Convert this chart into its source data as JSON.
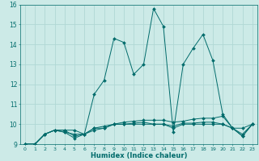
{
  "xlabel": "Humidex (Indice chaleur)",
  "ylabel": "",
  "bg_color": "#cceae7",
  "grid_color": "#b0d8d5",
  "line_color": "#006b6b",
  "xlim": [
    -0.5,
    23.5
  ],
  "ylim": [
    9,
    16
  ],
  "yticks": [
    9,
    10,
    11,
    12,
    13,
    14,
    15,
    16
  ],
  "xtick_labels": [
    "0",
    "1",
    "2",
    "3",
    "4",
    "5",
    "6",
    "7",
    "8",
    "9",
    "10",
    "11",
    "12",
    "13",
    "14",
    "15",
    "16",
    "17",
    "18",
    "19",
    "20",
    "21",
    "22",
    "23"
  ],
  "series": [
    [
      9.0,
      9.0,
      9.5,
      9.7,
      9.7,
      9.7,
      9.5,
      11.5,
      12.2,
      14.3,
      14.1,
      12.5,
      13.0,
      15.8,
      14.9,
      9.6,
      13.0,
      13.8,
      14.5,
      13.2,
      10.5,
      9.8,
      9.8,
      10.0
    ],
    [
      9.0,
      9.0,
      9.5,
      9.7,
      9.7,
      9.4,
      9.5,
      9.7,
      9.8,
      10.0,
      10.1,
      10.15,
      10.2,
      10.2,
      10.2,
      10.1,
      10.15,
      10.25,
      10.3,
      10.3,
      10.4,
      9.8,
      9.4,
      10.0
    ],
    [
      9.0,
      9.0,
      9.5,
      9.7,
      9.6,
      9.3,
      9.5,
      9.8,
      9.9,
      10.0,
      10.0,
      10.0,
      10.0,
      10.0,
      10.0,
      9.8,
      10.0,
      10.0,
      10.0,
      10.0,
      10.0,
      9.8,
      9.4,
      10.0
    ],
    [
      9.0,
      9.0,
      9.5,
      9.7,
      9.6,
      9.5,
      9.5,
      9.8,
      9.8,
      10.0,
      10.0,
      10.05,
      10.1,
      10.0,
      10.0,
      9.9,
      10.05,
      10.05,
      10.1,
      10.1,
      10.0,
      9.8,
      9.5,
      10.0
    ]
  ]
}
